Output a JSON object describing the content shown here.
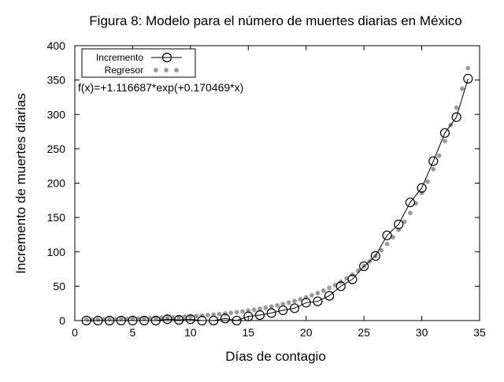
{
  "chart_data": {
    "type": "line",
    "title": "Figura 8: Modelo para el número de muertes diarias en México",
    "xlabel": "Días de contagio",
    "ylabel": "Incremento de muertes diarias",
    "xlim": [
      0,
      35
    ],
    "ylim": [
      0,
      400
    ],
    "xticks": [
      "0",
      "5",
      "10",
      "15",
      "20",
      "25",
      "30",
      "35"
    ],
    "yticks": [
      "0",
      "50",
      "100",
      "150",
      "200",
      "250",
      "300",
      "350",
      "400"
    ],
    "grid": false,
    "legend_position": "top-left",
    "annotation": "f(x)=+1.116687*exp(+0.170469*x)",
    "series": [
      {
        "name": "Incremento",
        "style": "line-with-open-circles",
        "color": "#000000",
        "x": [
          1,
          2,
          3,
          4,
          5,
          6,
          7,
          8,
          9,
          10,
          11,
          12,
          13,
          14,
          15,
          16,
          17,
          18,
          19,
          20,
          21,
          22,
          23,
          24,
          25,
          26,
          27,
          28,
          29,
          30,
          31,
          32,
          33,
          34
        ],
        "y": [
          0,
          0,
          0,
          0,
          0,
          0,
          0,
          2,
          1,
          2,
          0,
          0,
          3,
          0,
          6,
          8,
          11,
          15,
          18,
          26,
          28,
          36,
          50,
          60,
          79,
          94,
          124,
          140,
          172,
          193,
          232,
          273,
          296,
          352
        ]
      },
      {
        "name": "Regresor",
        "style": "asterisk-points",
        "color": "#999999",
        "sampling": {
          "start": 1,
          "end": 34,
          "step": 0.5
        },
        "function": {
          "a": 1.116687,
          "b": 0.170469
        }
      }
    ]
  }
}
